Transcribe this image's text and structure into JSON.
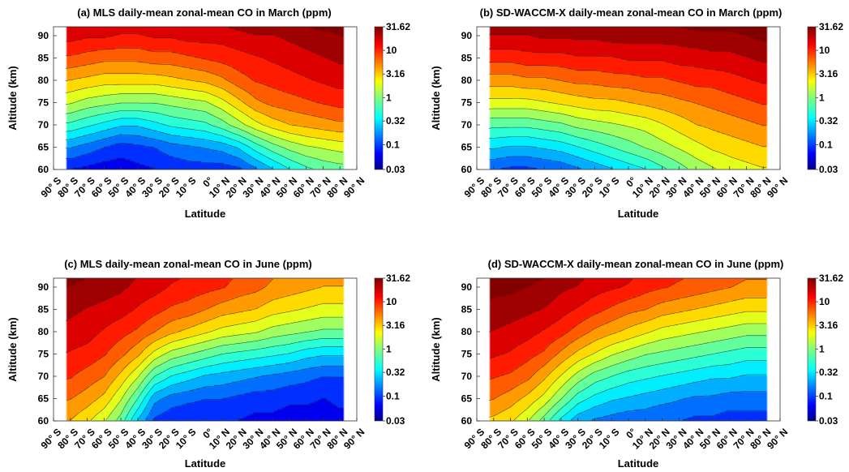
{
  "figure": {
    "shared_axes": {
      "xlabel": "Latitude",
      "ylabel": "Altitude (km)",
      "x_tick_labels": [
        "90° S",
        "80° S",
        "70° S",
        "60° S",
        "50° S",
        "40° S",
        "30° S",
        "20° S",
        "10° S",
        "0°",
        "10° N",
        "20° N",
        "30° N",
        "40° N",
        "50° N",
        "60° N",
        "70° N",
        "80° N",
        "90° N"
      ],
      "y_tick_labels": [
        "60",
        "65",
        "70",
        "75",
        "80",
        "85",
        "90"
      ],
      "colorbar_tick_labels": [
        "31.62",
        "10",
        "3.16",
        "1",
        "0.32",
        "0.1",
        "0.03"
      ]
    }
  },
  "chart_data": [
    {
      "type": "heatmap",
      "title": "(a) MLS daily-mean zonal-mean CO in March (ppm)",
      "xlabel": "Latitude",
      "ylabel": "Altitude (km)",
      "x": [
        -90,
        -80,
        -70,
        -60,
        -50,
        -40,
        -30,
        -20,
        -10,
        0,
        10,
        20,
        30,
        40,
        50,
        60,
        70,
        80,
        90
      ],
      "x_data_range": [
        -82,
        82
      ],
      "y": [
        60,
        65,
        70,
        75,
        80,
        85,
        90,
        92
      ],
      "ylim": [
        60,
        92
      ],
      "z_unit": "ppm",
      "z_scale": "log10",
      "z_range": [
        0.03,
        31.62
      ],
      "z_log10": [
        [
          -1.15,
          -1.15,
          -1.2,
          -1.25,
          -1.25,
          -1.2,
          -1.15,
          -1.1,
          -1.05,
          -1.05,
          -1.05,
          -1.0,
          -0.8,
          -0.6,
          -0.4,
          -0.25,
          -0.15,
          -0.1,
          -0.1
        ],
        [
          -0.75,
          -0.75,
          -0.85,
          -0.95,
          -1.05,
          -1.0,
          -0.95,
          -0.85,
          -0.8,
          -0.75,
          -0.7,
          -0.55,
          -0.3,
          -0.1,
          0.05,
          0.15,
          0.2,
          0.25,
          0.25
        ],
        [
          -0.2,
          -0.25,
          -0.35,
          -0.45,
          -0.55,
          -0.55,
          -0.45,
          -0.35,
          -0.3,
          -0.25,
          -0.1,
          0.1,
          0.3,
          0.45,
          0.55,
          0.6,
          0.65,
          0.7,
          0.7
        ],
        [
          0.25,
          0.2,
          0.1,
          0.05,
          0.0,
          0.0,
          0.0,
          0.05,
          0.1,
          0.15,
          0.3,
          0.5,
          0.7,
          0.8,
          0.85,
          0.9,
          0.95,
          1.0,
          1.0
        ],
        [
          0.6,
          0.55,
          0.5,
          0.45,
          0.45,
          0.45,
          0.45,
          0.5,
          0.55,
          0.6,
          0.7,
          0.85,
          0.95,
          1.0,
          1.05,
          1.1,
          1.15,
          1.2,
          1.2
        ],
        [
          0.9,
          0.9,
          0.85,
          0.8,
          0.8,
          0.8,
          0.85,
          0.85,
          0.9,
          0.95,
          1.0,
          1.05,
          1.1,
          1.15,
          1.2,
          1.25,
          1.3,
          1.35,
          1.35
        ],
        [
          1.2,
          1.2,
          1.15,
          1.15,
          1.1,
          1.1,
          1.15,
          1.15,
          1.2,
          1.2,
          1.2,
          1.25,
          1.3,
          1.3,
          1.35,
          1.4,
          1.45,
          1.5,
          1.5
        ],
        [
          1.3,
          1.3,
          1.25,
          1.25,
          1.2,
          1.2,
          1.25,
          1.25,
          1.3,
          1.3,
          1.3,
          1.35,
          1.4,
          1.4,
          1.45,
          1.5,
          1.55,
          1.55,
          1.55
        ]
      ]
    },
    {
      "type": "heatmap",
      "title": "(b) SD-WACCM-X daily-mean zonal-mean CO in March (ppm)",
      "xlabel": "Latitude",
      "ylabel": "Altitude (km)",
      "x": [
        -90,
        -80,
        -70,
        -60,
        -50,
        -40,
        -30,
        -20,
        -10,
        0,
        10,
        20,
        30,
        40,
        50,
        60,
        70,
        80,
        90
      ],
      "x_data_range": [
        -82,
        82
      ],
      "y": [
        60,
        65,
        70,
        75,
        80,
        85,
        90,
        92
      ],
      "ylim": [
        60,
        92
      ],
      "z_unit": "ppm",
      "z_scale": "log10",
      "z_range": [
        0.03,
        31.62
      ],
      "z_log10": [
        [
          -0.95,
          -0.95,
          -1.0,
          -1.0,
          -0.95,
          -0.9,
          -0.8,
          -0.7,
          -0.6,
          -0.5,
          -0.4,
          -0.25,
          -0.1,
          0.05,
          0.15,
          0.25,
          0.3,
          0.35,
          0.35
        ],
        [
          -0.55,
          -0.55,
          -0.6,
          -0.6,
          -0.55,
          -0.5,
          -0.4,
          -0.3,
          -0.2,
          -0.1,
          0.0,
          0.1,
          0.2,
          0.3,
          0.4,
          0.45,
          0.5,
          0.55,
          0.55
        ],
        [
          -0.1,
          -0.15,
          -0.15,
          -0.15,
          -0.1,
          -0.05,
          0.05,
          0.1,
          0.15,
          0.2,
          0.25,
          0.35,
          0.45,
          0.55,
          0.6,
          0.65,
          0.7,
          0.75,
          0.75
        ],
        [
          0.3,
          0.3,
          0.3,
          0.3,
          0.35,
          0.4,
          0.45,
          0.5,
          0.5,
          0.55,
          0.6,
          0.65,
          0.7,
          0.75,
          0.8,
          0.85,
          0.9,
          0.95,
          0.95
        ],
        [
          0.65,
          0.65,
          0.65,
          0.7,
          0.7,
          0.75,
          0.8,
          0.8,
          0.85,
          0.85,
          0.9,
          0.9,
          0.95,
          1.0,
          1.0,
          1.05,
          1.1,
          1.15,
          1.15
        ],
        [
          1.0,
          1.0,
          1.0,
          1.05,
          1.05,
          1.05,
          1.1,
          1.1,
          1.1,
          1.15,
          1.15,
          1.15,
          1.2,
          1.2,
          1.25,
          1.25,
          1.3,
          1.35,
          1.35
        ],
        [
          1.3,
          1.3,
          1.3,
          1.3,
          1.35,
          1.35,
          1.35,
          1.35,
          1.4,
          1.4,
          1.4,
          1.4,
          1.4,
          1.45,
          1.45,
          1.45,
          1.5,
          1.55,
          1.55
        ],
        [
          1.4,
          1.4,
          1.4,
          1.4,
          1.45,
          1.45,
          1.45,
          1.45,
          1.5,
          1.5,
          1.5,
          1.5,
          1.5,
          1.55,
          1.55,
          1.55,
          1.6,
          1.6,
          1.6
        ]
      ]
    },
    {
      "type": "heatmap",
      "title": "(c) MLS daily-mean zonal-mean CO in June (ppm)",
      "xlabel": "Latitude",
      "ylabel": "Altitude (km)",
      "x": [
        -90,
        -80,
        -70,
        -60,
        -50,
        -40,
        -30,
        -20,
        -10,
        0,
        10,
        20,
        30,
        40,
        50,
        60,
        70,
        80,
        90
      ],
      "x_data_range": [
        -82,
        82
      ],
      "y": [
        60,
        65,
        70,
        75,
        80,
        85,
        90,
        92
      ],
      "ylim": [
        60,
        92
      ],
      "z_unit": "ppm",
      "z_scale": "log10",
      "z_range": [
        0.03,
        31.62
      ],
      "z_log10": [
        [
          0.6,
          0.55,
          0.4,
          0.2,
          -0.1,
          -0.6,
          -1.0,
          -1.1,
          -1.15,
          -1.15,
          -1.15,
          -1.15,
          -1.2,
          -1.2,
          -1.25,
          -1.25,
          -1.25,
          -1.2,
          -1.2
        ],
        [
          0.8,
          0.75,
          0.65,
          0.5,
          0.2,
          -0.2,
          -0.7,
          -0.85,
          -0.9,
          -0.95,
          -0.95,
          -1.0,
          -1.05,
          -1.05,
          -1.1,
          -1.1,
          -1.15,
          -1.1,
          -1.1
        ],
        [
          1.0,
          0.95,
          0.85,
          0.75,
          0.5,
          0.2,
          -0.2,
          -0.4,
          -0.5,
          -0.6,
          -0.65,
          -0.7,
          -0.75,
          -0.8,
          -0.85,
          -0.9,
          -0.95,
          -0.95,
          -0.95
        ],
        [
          1.15,
          1.1,
          1.05,
          0.95,
          0.8,
          0.6,
          0.3,
          0.1,
          0.0,
          -0.1,
          -0.2,
          -0.25,
          -0.3,
          -0.35,
          -0.4,
          -0.5,
          -0.55,
          -0.55,
          -0.55
        ],
        [
          1.3,
          1.25,
          1.2,
          1.1,
          1.0,
          0.9,
          0.75,
          0.6,
          0.5,
          0.4,
          0.3,
          0.25,
          0.2,
          0.1,
          0.05,
          0.0,
          -0.05,
          -0.05,
          -0.05
        ],
        [
          1.4,
          1.35,
          1.3,
          1.25,
          1.2,
          1.1,
          1.0,
          0.9,
          0.85,
          0.75,
          0.65,
          0.6,
          0.55,
          0.45,
          0.4,
          0.35,
          0.3,
          0.3,
          0.3
        ],
        [
          1.5,
          1.5,
          1.45,
          1.4,
          1.35,
          1.25,
          1.2,
          1.1,
          1.05,
          1.0,
          0.95,
          0.85,
          0.8,
          0.7,
          0.65,
          0.6,
          0.55,
          0.55,
          0.55
        ],
        [
          1.55,
          1.55,
          1.5,
          1.45,
          1.4,
          1.3,
          1.25,
          1.15,
          1.1,
          1.05,
          1.0,
          0.9,
          0.85,
          0.75,
          0.7,
          0.65,
          0.6,
          0.6,
          0.6
        ]
      ]
    },
    {
      "type": "heatmap",
      "title": "(d) SD-WACCM-X daily-mean zonal-mean CO in June (ppm)",
      "xlabel": "Latitude",
      "ylabel": "Altitude (km)",
      "x": [
        -90,
        -80,
        -70,
        -60,
        -50,
        -40,
        -30,
        -20,
        -10,
        0,
        10,
        20,
        30,
        40,
        50,
        60,
        70,
        80,
        90
      ],
      "x_data_range": [
        -82,
        82
      ],
      "y": [
        60,
        65,
        70,
        75,
        80,
        85,
        90,
        92
      ],
      "ylim": [
        60,
        92
      ],
      "z_unit": "ppm",
      "z_scale": "log10",
      "z_range": [
        0.03,
        31.62
      ],
      "z_log10": [
        [
          0.55,
          0.5,
          0.4,
          0.2,
          -0.1,
          -0.45,
          -0.7,
          -0.8,
          -0.85,
          -0.9,
          -0.9,
          -0.95,
          -0.95,
          -1.0,
          -1.0,
          -1.05,
          -1.05,
          -1.05,
          -1.05
        ],
        [
          0.8,
          0.75,
          0.65,
          0.5,
          0.3,
          0.0,
          -0.3,
          -0.45,
          -0.55,
          -0.6,
          -0.65,
          -0.7,
          -0.75,
          -0.8,
          -0.8,
          -0.85,
          -0.85,
          -0.85,
          -0.85
        ],
        [
          1.0,
          0.95,
          0.9,
          0.8,
          0.6,
          0.35,
          0.1,
          -0.1,
          -0.2,
          -0.3,
          -0.35,
          -0.4,
          -0.45,
          -0.5,
          -0.55,
          -0.55,
          -0.6,
          -0.6,
          -0.6
        ],
        [
          1.2,
          1.15,
          1.1,
          1.0,
          0.9,
          0.7,
          0.5,
          0.35,
          0.2,
          0.1,
          0.0,
          -0.05,
          -0.1,
          -0.15,
          -0.2,
          -0.25,
          -0.3,
          -0.3,
          -0.3
        ],
        [
          1.35,
          1.3,
          1.25,
          1.2,
          1.1,
          1.0,
          0.85,
          0.7,
          0.6,
          0.5,
          0.4,
          0.3,
          0.25,
          0.2,
          0.15,
          0.1,
          0.05,
          0.05,
          0.05
        ],
        [
          1.45,
          1.45,
          1.4,
          1.35,
          1.3,
          1.2,
          1.1,
          1.0,
          0.9,
          0.8,
          0.75,
          0.65,
          0.6,
          0.55,
          0.5,
          0.45,
          0.4,
          0.4,
          0.4
        ],
        [
          1.6,
          1.55,
          1.55,
          1.5,
          1.45,
          1.35,
          1.3,
          1.2,
          1.15,
          1.1,
          1.0,
          0.95,
          0.9,
          0.85,
          0.8,
          0.75,
          0.7,
          0.7,
          0.7
        ],
        [
          1.65,
          1.6,
          1.6,
          1.55,
          1.5,
          1.4,
          1.35,
          1.25,
          1.2,
          1.15,
          1.05,
          1.0,
          0.95,
          0.9,
          0.85,
          0.8,
          0.75,
          0.75,
          0.75
        ]
      ]
    }
  ]
}
